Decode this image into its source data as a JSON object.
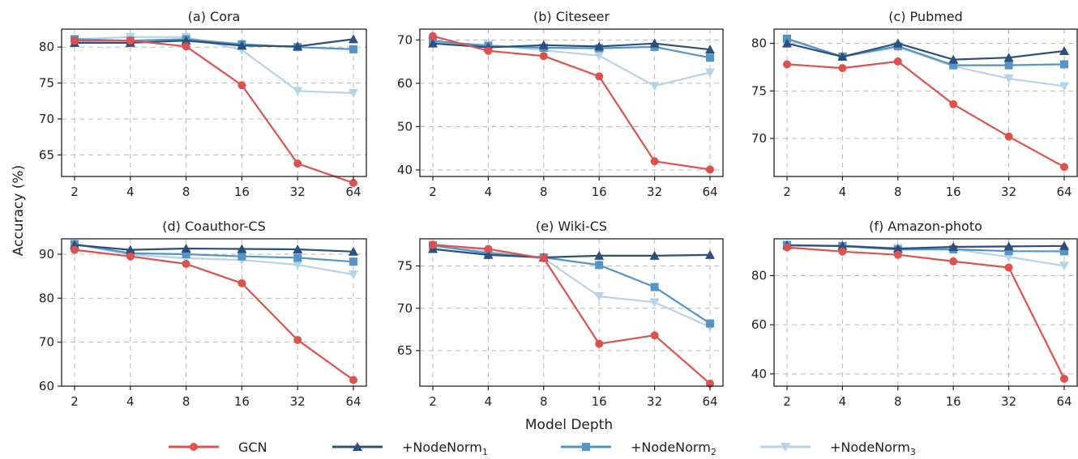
{
  "colors": {
    "GCN": "#dd524c",
    "NodeNorm1": "#2d4f7c",
    "NodeNorm2": "#5494c6",
    "NodeNorm3": "#b7d3e6"
  },
  "labels": {
    "ylabel": "Accuracy (%)",
    "xlabel": "Model Depth"
  },
  "legend": [
    {
      "key": "GCN",
      "text": "GCN",
      "sub": "",
      "marker": "circle"
    },
    {
      "key": "NodeNorm1",
      "text": "+NodeNorm",
      "sub": "1",
      "marker": "triangle-up"
    },
    {
      "key": "NodeNorm2",
      "text": "+NodeNorm",
      "sub": "2",
      "marker": "square"
    },
    {
      "key": "NodeNorm3",
      "text": "+NodeNorm",
      "sub": "3",
      "marker": "triangle-down"
    }
  ],
  "chart_data": [
    {
      "type": "line",
      "title": "(a) Cora",
      "categories": [
        "2",
        "4",
        "8",
        "16",
        "32",
        "64"
      ],
      "ylim": [
        62,
        82.5
      ],
      "yticks": [
        65,
        70,
        75,
        80
      ],
      "grid": true,
      "series": [
        {
          "name": "GCN",
          "key": "GCN",
          "values": [
            80.9,
            80.9,
            80.1,
            74.7,
            63.8,
            61.1
          ]
        },
        {
          "name": "+NodeNorm1",
          "key": "NodeNorm1",
          "values": [
            80.6,
            80.6,
            80.9,
            80.2,
            80.1,
            81.1
          ]
        },
        {
          "name": "+NodeNorm2",
          "key": "NodeNorm2",
          "values": [
            81.1,
            80.9,
            81.1,
            80.4,
            80.0,
            79.7
          ]
        },
        {
          "name": "+NodeNorm3",
          "key": "NodeNorm3",
          "values": [
            81.1,
            81.4,
            81.4,
            79.6,
            73.9,
            73.6
          ]
        }
      ]
    },
    {
      "type": "line",
      "title": "(b) Citeseer",
      "categories": [
        "2",
        "4",
        "8",
        "16",
        "32",
        "64"
      ],
      "ylim": [
        38.5,
        72.5
      ],
      "yticks": [
        40,
        50,
        60,
        70
      ],
      "grid": true,
      "series": [
        {
          "name": "GCN",
          "key": "GCN",
          "values": [
            70.9,
            67.5,
            66.3,
            61.6,
            42.0,
            40.1
          ]
        },
        {
          "name": "+NodeNorm1",
          "key": "NodeNorm1",
          "values": [
            69.2,
            68.3,
            68.8,
            68.5,
            69.2,
            67.8
          ]
        },
        {
          "name": "+NodeNorm2",
          "key": "NodeNorm2",
          "values": [
            69.8,
            68.6,
            68.2,
            68.1,
            68.4,
            65.9
          ]
        },
        {
          "name": "+NodeNorm3",
          "key": "NodeNorm3",
          "values": [
            69.5,
            68.9,
            67.6,
            66.4,
            59.4,
            62.5
          ]
        }
      ]
    },
    {
      "type": "line",
      "title": "(c) Pubmed",
      "categories": [
        "2",
        "4",
        "8",
        "16",
        "32",
        "64"
      ],
      "ylim": [
        66,
        81.5
      ],
      "yticks": [
        70,
        75,
        80
      ],
      "grid": true,
      "series": [
        {
          "name": "GCN",
          "key": "GCN",
          "values": [
            77.8,
            77.4,
            78.1,
            73.6,
            70.2,
            67.0
          ]
        },
        {
          "name": "+NodeNorm1",
          "key": "NodeNorm1",
          "values": [
            80.0,
            78.6,
            80.0,
            78.3,
            78.5,
            79.2
          ]
        },
        {
          "name": "+NodeNorm2",
          "key": "NodeNorm2",
          "values": [
            80.5,
            78.6,
            79.7,
            77.7,
            77.7,
            77.8
          ]
        },
        {
          "name": "+NodeNorm3",
          "key": "NodeNorm3",
          "values": [
            80.4,
            78.6,
            79.6,
            77.6,
            76.3,
            75.5
          ]
        }
      ]
    },
    {
      "type": "line",
      "title": "(d) Coauthor-CS",
      "categories": [
        "2",
        "4",
        "8",
        "16",
        "32",
        "64"
      ],
      "ylim": [
        60,
        93.5
      ],
      "yticks": [
        60,
        70,
        80,
        90
      ],
      "grid": true,
      "series": [
        {
          "name": "GCN",
          "key": "GCN",
          "values": [
            91.0,
            89.5,
            87.8,
            83.4,
            70.5,
            61.4
          ]
        },
        {
          "name": "+NodeNorm1",
          "key": "NodeNorm1",
          "values": [
            92.1,
            91.0,
            91.3,
            91.2,
            91.1,
            90.6
          ]
        },
        {
          "name": "+NodeNorm2",
          "key": "NodeNorm2",
          "values": [
            92.3,
            90.2,
            90.0,
            89.5,
            89.2,
            88.3
          ]
        },
        {
          "name": "+NodeNorm3",
          "key": "NodeNorm3",
          "values": [
            92.3,
            89.9,
            89.1,
            88.7,
            87.6,
            85.4
          ]
        }
      ]
    },
    {
      "type": "line",
      "title": "(e) Wiki-CS",
      "categories": [
        "2",
        "4",
        "8",
        "16",
        "32",
        "64"
      ],
      "ylim": [
        60.8,
        78.2
      ],
      "yticks": [
        65,
        70,
        75
      ],
      "grid": true,
      "series": [
        {
          "name": "GCN",
          "key": "GCN",
          "values": [
            77.5,
            77.0,
            75.9,
            65.8,
            66.8,
            61.1
          ]
        },
        {
          "name": "+NodeNorm1",
          "key": "NodeNorm1",
          "values": [
            77.0,
            76.3,
            76.0,
            76.2,
            76.2,
            76.3
          ]
        },
        {
          "name": "+NodeNorm2",
          "key": "NodeNorm2",
          "values": [
            77.4,
            76.5,
            76.0,
            75.1,
            72.5,
            68.2
          ]
        },
        {
          "name": "+NodeNorm3",
          "key": "NodeNorm3",
          "values": [
            77.5,
            76.7,
            75.9,
            71.4,
            70.7,
            67.8
          ]
        }
      ]
    },
    {
      "type": "line",
      "title": "(f) Amazon-photo",
      "categories": [
        "2",
        "4",
        "8",
        "16",
        "32",
        "64"
      ],
      "ylim": [
        35,
        95
      ],
      "yticks": [
        40,
        60,
        80
      ],
      "grid": true,
      "series": [
        {
          "name": "GCN",
          "key": "GCN",
          "values": [
            91.5,
            89.8,
            88.5,
            85.8,
            83.3,
            38.0
          ]
        },
        {
          "name": "+NodeNorm1",
          "key": "NodeNorm1",
          "values": [
            92.3,
            92.1,
            91.0,
            91.7,
            91.9,
            92.1
          ]
        },
        {
          "name": "+NodeNorm2",
          "key": "NodeNorm2",
          "values": [
            92.5,
            92.0,
            90.6,
            90.7,
            90.0,
            89.9
          ]
        },
        {
          "name": "+NodeNorm3",
          "key": "NodeNorm3",
          "values": [
            92.3,
            92.2,
            91.2,
            90.8,
            87.6,
            84.0
          ]
        }
      ]
    }
  ]
}
